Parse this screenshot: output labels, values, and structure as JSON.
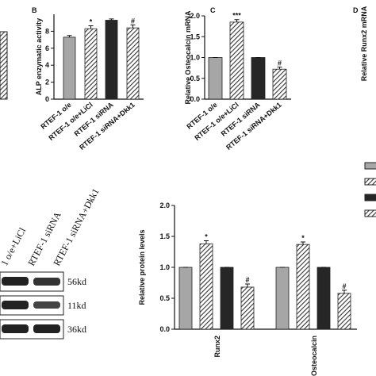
{
  "chart_data": [
    {
      "type": "bar",
      "panel": "B",
      "ylabel": "ALP enzymatic activity",
      "categories": [
        "RTEF-1 o/e",
        "RTEF-1 o/e+LiCl",
        "RTEF-1 siRNA",
        "RTEF-1 siRNA+Dkk1"
      ],
      "values": [
        7.3,
        8.3,
        9.3,
        8.4
      ],
      "errors": [
        0.2,
        0.35,
        0.15,
        0.35
      ],
      "annotations": [
        null,
        "*",
        null,
        "#"
      ],
      "colors": [
        "#a6a6a6",
        "hatch",
        "#262626",
        "hatch"
      ],
      "ylim": [
        0,
        10
      ],
      "yticks": [
        0,
        2,
        4,
        6,
        8
      ]
    },
    {
      "type": "bar",
      "panel": "C",
      "ylabel": "Relative Osteocalcin mRNA",
      "categories": [
        "RTEF-1 o/e",
        "RTEF-1 o/e+LiCl",
        "RTEF-1 siRNA",
        "RTEF-1 siRNA+Dkk1"
      ],
      "values": [
        1,
        1.85,
        1,
        0.72
      ],
      "errors": [
        0,
        0.06,
        0,
        0.05
      ],
      "annotations": [
        null,
        "***",
        null,
        "#"
      ],
      "colors": [
        "#a6a6a6",
        "hatch",
        "#262626",
        "hatch"
      ],
      "ylim": [
        0,
        2
      ],
      "yticks": [
        {
          "value": 0,
          "label": "0.0"
        },
        {
          "value": 0.5,
          "label": "0.5"
        },
        {
          "value": 1,
          "label": "1.0"
        },
        {
          "value": 1.5,
          "label": "1.5"
        },
        {
          "value": 2,
          "label": "2.0"
        }
      ]
    },
    {
      "type": "bar",
      "panel": "D",
      "ylabel": "Relative Runx2 mRNA"
    },
    {
      "type": "grouped-bar",
      "ylabel": "Relative protein levels",
      "categories": [
        "Runx2",
        "Osteocalcin"
      ],
      "series": [
        {
          "color": "#a6a6a6",
          "values": [
            1,
            1
          ],
          "errors": [
            0,
            0
          ],
          "annotations": [
            null,
            null
          ]
        },
        {
          "color": "hatch",
          "values": [
            1.38,
            1.37
          ],
          "errors": [
            0.05,
            0.04
          ],
          "annotations": [
            "*",
            "*"
          ]
        },
        {
          "color": "#262626",
          "values": [
            1,
            1
          ],
          "errors": [
            0,
            0
          ],
          "annotations": [
            null,
            null
          ]
        },
        {
          "color": "hatch",
          "values": [
            0.68,
            0.58
          ],
          "errors": [
            0.05,
            0.05
          ],
          "annotations": [
            "#",
            "#"
          ]
        }
      ],
      "ylim": [
        0,
        2
      ],
      "yticks": [
        {
          "value": 0,
          "label": "0.0"
        },
        {
          "value": 0.5,
          "label": "0.5"
        },
        {
          "value": 1,
          "label": "1.0"
        },
        {
          "value": 1.5,
          "label": "1.5"
        },
        {
          "value": 2,
          "label": "2.0"
        }
      ]
    }
  ],
  "blot": {
    "lanes": [
      "1 o/e+LiCl",
      "RTEF-1 siRNA",
      "RTEF-1 siRNA+Dkk1"
    ],
    "bands": [
      "56kd",
      "11kd",
      "36kd"
    ]
  }
}
